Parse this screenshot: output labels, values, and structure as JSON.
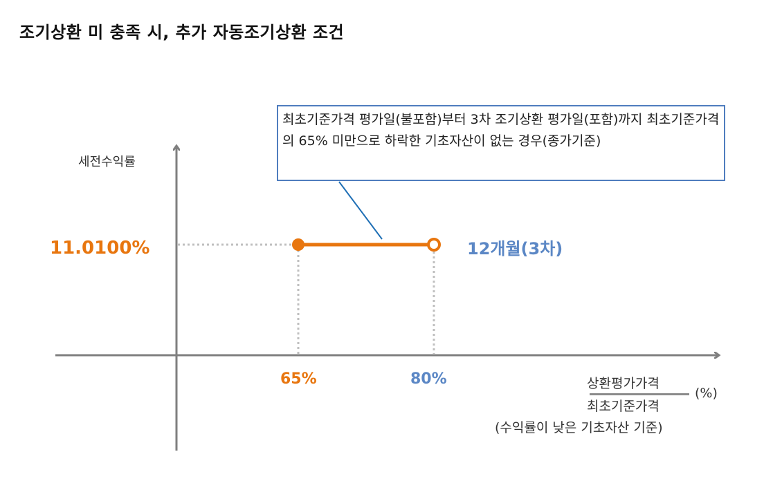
{
  "title": "조기상환 미 충족 시, 추가 자동조기상환 조건",
  "y_axis_label": "세전수익률",
  "y_value_label": "11.0100%",
  "x_ticks": [
    "65%",
    "80%"
  ],
  "period_label": "12개월(3차)",
  "callout_text": "최초기준가격 평가일(불포함)부터 3차 조기상환 평가일(포함)까지 최초기준가격의 65% 미만으로 하락한 기초자산이 없는 경우(종가기준)",
  "x_axis_label": {
    "numerator": "상환평가가격",
    "denominator": "최초기준가격",
    "unit": "(%)",
    "basis": "(수익률이 낮은 기초자산 기준)"
  },
  "segment": {
    "from_pct": 65,
    "to_pct": 80,
    "yield_pct": 11.01,
    "from_inclusive": true,
    "to_inclusive": false
  },
  "colors": {
    "orange": "#E8760F",
    "blue": "#5B87C5",
    "axis": "#7F7F7F",
    "box_border": "#4F7DBE"
  }
}
